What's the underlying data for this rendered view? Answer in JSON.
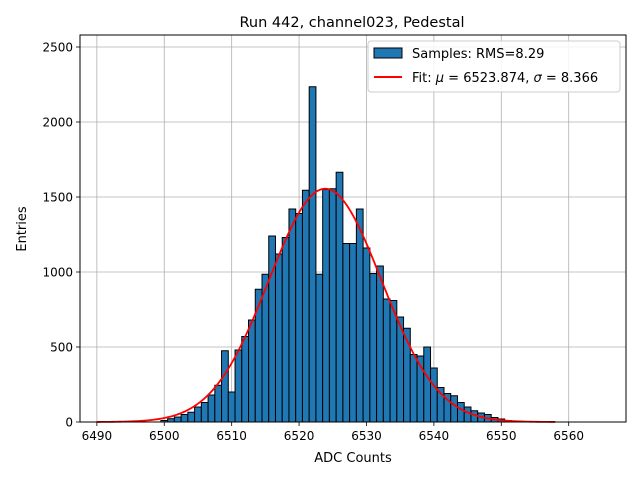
{
  "chart_data": {
    "type": "bar",
    "title": "Run 442, channel023, Pedestal",
    "xlabel": "ADC Counts",
    "ylabel": "Entries",
    "xlim": [
      6487.5,
      6568.5
    ],
    "ylim": [
      0,
      2580
    ],
    "xticks": [
      6490,
      6500,
      6510,
      6520,
      6530,
      6540,
      6550,
      6560
    ],
    "yticks": [
      0,
      500,
      1000,
      1500,
      2000,
      2500
    ],
    "grid": true,
    "legend_position": "top-right",
    "bin_width": 1,
    "series": [
      {
        "name": "Samples: RMS=8.29",
        "kind": "histogram",
        "color": "#1f77b4",
        "edgecolor": "#000000",
        "bins": [
          [
            6500,
            10
          ],
          [
            6501,
            22
          ],
          [
            6502,
            33
          ],
          [
            6503,
            50
          ],
          [
            6504,
            65
          ],
          [
            6505,
            100
          ],
          [
            6506,
            130
          ],
          [
            6507,
            180
          ],
          [
            6508,
            245
          ],
          [
            6509,
            475
          ],
          [
            6510,
            200
          ],
          [
            6511,
            480
          ],
          [
            6512,
            570
          ],
          [
            6513,
            680
          ],
          [
            6514,
            885
          ],
          [
            6515,
            985
          ],
          [
            6516,
            1240
          ],
          [
            6517,
            1120
          ],
          [
            6518,
            1230
          ],
          [
            6519,
            1420
          ],
          [
            6520,
            1390
          ],
          [
            6521,
            1545
          ],
          [
            6522,
            2235
          ],
          [
            6523,
            985
          ],
          [
            6524,
            1550
          ],
          [
            6525,
            1555
          ],
          [
            6526,
            1665
          ],
          [
            6527,
            1190
          ],
          [
            6528,
            1190
          ],
          [
            6529,
            1420
          ],
          [
            6530,
            1160
          ],
          [
            6531,
            990
          ],
          [
            6532,
            1040
          ],
          [
            6533,
            820
          ],
          [
            6534,
            810
          ],
          [
            6535,
            700
          ],
          [
            6536,
            625
          ],
          [
            6537,
            450
          ],
          [
            6538,
            440
          ],
          [
            6539,
            500
          ],
          [
            6540,
            360
          ],
          [
            6541,
            230
          ],
          [
            6542,
            190
          ],
          [
            6543,
            175
          ],
          [
            6544,
            130
          ],
          [
            6545,
            100
          ],
          [
            6546,
            75
          ],
          [
            6547,
            60
          ],
          [
            6548,
            50
          ],
          [
            6549,
            30
          ],
          [
            6550,
            20
          ],
          [
            6551,
            10
          ]
        ]
      },
      {
        "name": "Fit: μ = 6523.874, σ = 8.366",
        "name_parts": [
          "Fit: ",
          "μ",
          " = 6523.874, ",
          "σ",
          " = 8.366"
        ],
        "kind": "gaussian_fit",
        "color": "#ff0000",
        "mu": 6523.874,
        "sigma": 8.366,
        "amplitude": 1555,
        "x_range": [
          6490,
          6558
        ]
      }
    ]
  }
}
